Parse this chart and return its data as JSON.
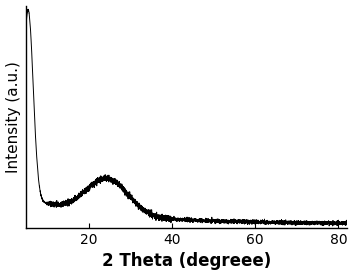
{
  "xlabel": "2 Theta (degreee)",
  "ylabel": "Intensity (a.u.)",
  "xlim": [
    5,
    82
  ],
  "xticks": [
    20,
    40,
    60,
    80
  ],
  "line_color": "#000000",
  "line_width": 0.7,
  "background_color": "#ffffff",
  "seed": 42,
  "xlabel_fontsize": 12,
  "ylabel_fontsize": 11,
  "tick_fontsize": 10,
  "xlabel_fontweight": "bold",
  "fig_width": 3.54,
  "fig_height": 2.76,
  "dpi": 100
}
